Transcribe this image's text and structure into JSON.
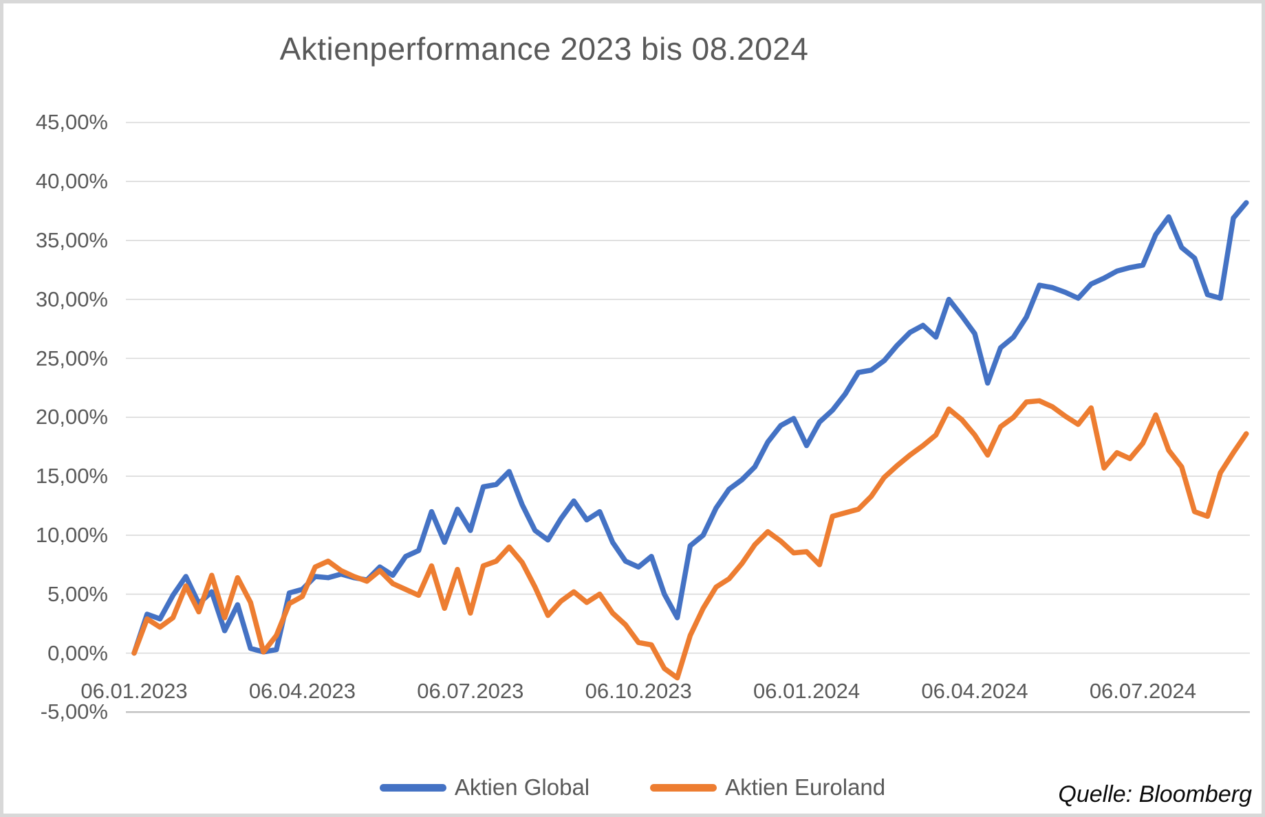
{
  "source_note": "Quelle: Bloomberg",
  "chart_data": {
    "type": "line",
    "title": "Aktienperformance 2023 bis 08.2024",
    "xlabel": "",
    "ylabel": "",
    "ylim": [
      -5,
      45
    ],
    "grid": true,
    "legend_position": "bottom",
    "grid_color": "#d9d9d9",
    "axis_line_color": "#bfbfbf",
    "text_color": "#595959",
    "x_tick_labels": [
      "06.01.2023",
      "06.04.2023",
      "06.07.2023",
      "06.10.2023",
      "06.01.2024",
      "06.04.2024",
      "06.07.2024"
    ],
    "x_tick_week_indices": [
      0,
      13,
      26,
      39,
      52,
      65,
      78
    ],
    "x_unit": "weeks",
    "y_ticks": [
      {
        "label": "45,00%",
        "value": 45
      },
      {
        "label": "40,00%",
        "value": 40
      },
      {
        "label": "35,00%",
        "value": 35
      },
      {
        "label": "30,00%",
        "value": 30
      },
      {
        "label": "25,00%",
        "value": 25
      },
      {
        "label": "20,00%",
        "value": 20
      },
      {
        "label": "15,00%",
        "value": 15
      },
      {
        "label": "10,00%",
        "value": 10
      },
      {
        "label": "5,00%",
        "value": 5
      },
      {
        "label": "0,00%",
        "value": 0
      },
      {
        "label": "-5,00%",
        "value": -5
      }
    ],
    "series": [
      {
        "id": "aktien-global",
        "name": "Aktien Global",
        "color": "#4472c4",
        "values": [
          0,
          3.3,
          2.9,
          4.9,
          6.5,
          4.2,
          5.2,
          1.9,
          4.1,
          0.4,
          0.1,
          0.3,
          5.1,
          5.4,
          6.5,
          6.4,
          6.7,
          6.4,
          6.2,
          7.3,
          6.6,
          8.2,
          8.7,
          12.0,
          9.4,
          12.2,
          10.4,
          14.1,
          14.3,
          15.4,
          12.6,
          10.4,
          9.6,
          11.4,
          12.9,
          11.3,
          12.0,
          9.4,
          7.8,
          7.3,
          8.2,
          5.0,
          3.0,
          9.1,
          10.0,
          12.3,
          13.9,
          14.7,
          15.8,
          17.9,
          19.3,
          19.9,
          17.6,
          19.6,
          20.6,
          22.0,
          23.8,
          24.0,
          24.8,
          26.1,
          27.2,
          27.8,
          26.8,
          30.0,
          28.6,
          27.1,
          22.9,
          25.9,
          26.8,
          28.5,
          31.2,
          31.0,
          30.6,
          30.1,
          31.3,
          31.8,
          32.4,
          32.7,
          32.9,
          35.5,
          37.0,
          34.4,
          33.5,
          30.4,
          30.1,
          36.9,
          38.2
        ]
      },
      {
        "id": "aktien-euroland",
        "name": "Aktien Euroland",
        "color": "#ed7d31",
        "values": [
          0,
          2.9,
          2.2,
          3.0,
          5.7,
          3.5,
          6.6,
          3.0,
          6.4,
          4.3,
          0.1,
          1.5,
          4.2,
          4.8,
          7.3,
          7.8,
          7.0,
          6.5,
          6.1,
          7.0,
          5.9,
          5.4,
          4.9,
          7.4,
          3.8,
          7.1,
          3.4,
          7.4,
          7.8,
          9.0,
          7.7,
          5.6,
          3.2,
          4.4,
          5.2,
          4.3,
          5.0,
          3.4,
          2.4,
          0.9,
          0.7,
          -1.3,
          -2.1,
          1.5,
          3.8,
          5.6,
          6.3,
          7.6,
          9.2,
          10.3,
          9.5,
          8.5,
          8.6,
          7.5,
          11.6,
          11.9,
          12.2,
          13.3,
          14.9,
          15.9,
          16.8,
          17.6,
          18.5,
          20.7,
          19.8,
          18.5,
          16.8,
          19.2,
          20.0,
          21.3,
          21.4,
          20.9,
          20.1,
          19.4,
          20.8,
          15.7,
          17.0,
          16.5,
          17.8,
          20.2,
          17.2,
          15.8,
          12.0,
          11.6,
          15.3,
          17.0,
          18.6
        ]
      }
    ]
  }
}
